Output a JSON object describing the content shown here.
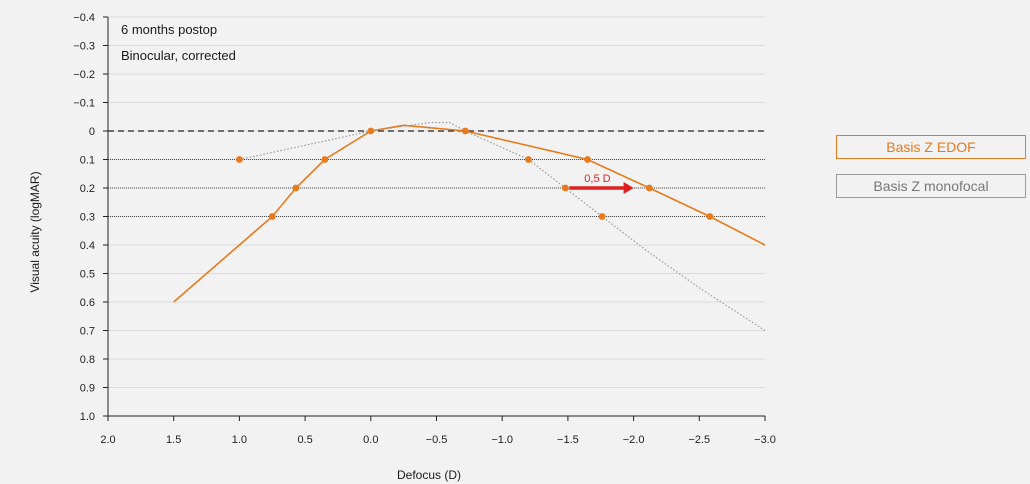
{
  "chart_data": {
    "type": "line",
    "annotations": [
      "6 months postop",
      "Binocular, corrected"
    ],
    "xlabel": "Defocus (D)",
    "ylabel": "Visual acuity (logMAR)",
    "xlim": [
      2.0,
      -3.0
    ],
    "ylim": [
      -0.4,
      1.0
    ],
    "x_ticks": [
      2.0,
      1.5,
      1.0,
      0.5,
      0.0,
      -0.5,
      -1.0,
      -1.5,
      -2.0,
      -2.5,
      -3.0
    ],
    "x_tick_labels": [
      "2.0",
      "1.5",
      "1.0",
      "0.5",
      "0.0",
      "−0.5",
      "−1.0",
      "−1.5",
      "−2.0",
      "−2.5",
      "−3.0"
    ],
    "y_ticks": [
      -0.4,
      -0.3,
      -0.2,
      -0.1,
      0,
      0.1,
      0.2,
      0.3,
      0.4,
      0.5,
      0.6,
      0.7,
      0.8,
      0.9,
      1.0
    ],
    "y_tick_labels": [
      "−0.4",
      "−0.3",
      "−0.2",
      "−0.1",
      "0",
      "0.1",
      "0.2",
      "0.3",
      "0.4",
      "0.5",
      "0.6",
      "0.7",
      "0.8",
      "0.9",
      "1.0"
    ],
    "reference_lines": [
      {
        "y": 0,
        "style": "dashed"
      },
      {
        "y": 0.1,
        "style": "dotted"
      },
      {
        "y": 0.2,
        "style": "dotted"
      },
      {
        "y": 0.3,
        "style": "dotted"
      }
    ],
    "series": [
      {
        "name": "Basis Z EDOF",
        "color": "#e87a1c",
        "points": [
          [
            1.5,
            0.6
          ],
          [
            1.0,
            0.4
          ],
          [
            0.75,
            0.3
          ],
          [
            0.57,
            0.2
          ],
          [
            0.35,
            0.1
          ],
          [
            0.0,
            0.0
          ],
          [
            -0.25,
            -0.02
          ],
          [
            -0.72,
            0.0
          ],
          [
            -1.65,
            0.1
          ],
          [
            -2.12,
            0.2
          ],
          [
            -2.58,
            0.3
          ],
          [
            -3.0,
            0.4
          ]
        ],
        "markers": [
          [
            0.75,
            0.3
          ],
          [
            0.57,
            0.2
          ],
          [
            0.35,
            0.1
          ],
          [
            0.0,
            0.0
          ],
          [
            -0.72,
            0.0
          ],
          [
            -1.65,
            0.1
          ],
          [
            -2.12,
            0.2
          ],
          [
            -2.58,
            0.3
          ]
        ]
      },
      {
        "name": "Basis Z monofocal",
        "color": "#9a9a9a",
        "points": [
          [
            1.0,
            0.1
          ],
          [
            0.5,
            0.05
          ],
          [
            0.0,
            0.0
          ],
          [
            -0.3,
            -0.02
          ],
          [
            -0.45,
            -0.03
          ],
          [
            -0.6,
            -0.03
          ],
          [
            -0.72,
            0.0
          ],
          [
            -1.2,
            0.1
          ],
          [
            -1.48,
            0.2
          ],
          [
            -1.76,
            0.3
          ],
          [
            -2.1,
            0.42
          ],
          [
            -2.5,
            0.55
          ],
          [
            -3.0,
            0.7
          ]
        ],
        "markers": [
          [
            1.0,
            0.1
          ],
          [
            -1.2,
            0.1
          ],
          [
            -1.48,
            0.2
          ],
          [
            -1.76,
            0.3
          ]
        ]
      }
    ],
    "arrow": {
      "label": "0,5 D",
      "from": [
        -1.48,
        0.2
      ],
      "to": [
        -2.0,
        0.2
      ],
      "color": "#e02020"
    },
    "legend": {
      "position": "right",
      "items": [
        "Basis Z EDOF",
        "Basis Z monofocal"
      ]
    }
  }
}
